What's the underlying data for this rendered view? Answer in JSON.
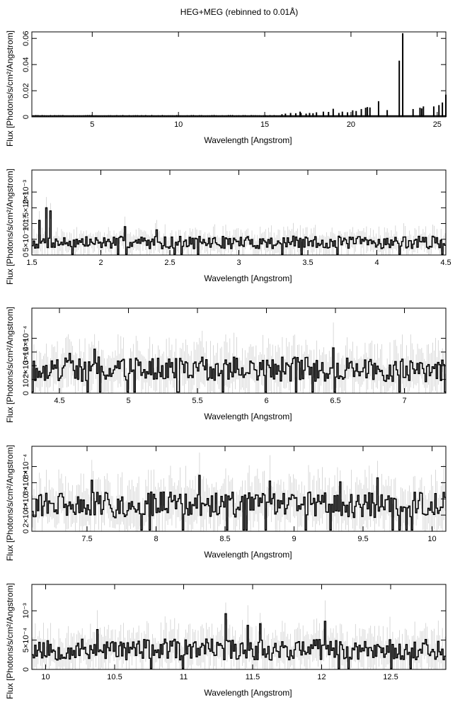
{
  "title": "HEG+MEG (rebinned to 0.01Å)",
  "chart_data": [
    {
      "type": "line",
      "xlabel": "Wavelength [Angstrom]",
      "ylabel": "Flux [Photons/s/cm²/Angstrom]",
      "xlim": [
        1.5,
        25.5
      ],
      "ylim": [
        0,
        0.065
      ],
      "xticks": [
        {
          "v": 5,
          "label": "5"
        },
        {
          "v": 10,
          "label": "10"
        },
        {
          "v": 15,
          "label": "15"
        },
        {
          "v": 20,
          "label": "20"
        },
        {
          "v": 25,
          "label": "25"
        }
      ],
      "yticks": [
        {
          "v": 0,
          "label": "0"
        },
        {
          "v": 0.02,
          "label": "0.02"
        },
        {
          "v": 0.04,
          "label": "0.04"
        },
        {
          "v": 0.06,
          "label": "0.06"
        }
      ],
      "series": [
        {
          "baseline": 0.0008,
          "lines": [
            [
              16.0,
              0.002
            ],
            [
              16.2,
              0.0025
            ],
            [
              16.5,
              0.003
            ],
            [
              16.8,
              0.0028
            ],
            [
              17.05,
              0.004
            ],
            [
              17.1,
              0.003
            ],
            [
              17.4,
              0.0025
            ],
            [
              17.6,
              0.003
            ],
            [
              17.8,
              0.0028
            ],
            [
              18.0,
              0.0035
            ],
            [
              18.4,
              0.004
            ],
            [
              18.7,
              0.0038
            ],
            [
              18.97,
              0.0062
            ],
            [
              19.3,
              0.003
            ],
            [
              19.5,
              0.004
            ],
            [
              19.8,
              0.0035
            ],
            [
              20.1,
              0.005
            ],
            [
              20.3,
              0.0045
            ],
            [
              20.6,
              0.006
            ],
            [
              20.85,
              0.007
            ],
            [
              20.95,
              0.0075
            ],
            [
              21.1,
              0.0072
            ],
            [
              21.6,
              0.012
            ],
            [
              22.1,
              0.0052
            ],
            [
              22.8,
              0.043
            ],
            [
              23.0,
              0.064
            ],
            [
              23.6,
              0.006
            ],
            [
              24.0,
              0.007
            ],
            [
              24.1,
              0.0065
            ],
            [
              24.2,
              0.008
            ],
            [
              24.8,
              0.008
            ],
            [
              25.1,
              0.009
            ],
            [
              25.3,
              0.011
            ],
            [
              25.5,
              0.017
            ]
          ]
        }
      ]
    },
    {
      "type": "line",
      "xlabel": "Wavelength [Angstrom]",
      "ylabel": "Flux [Photons/s/cm²/Angstrom]",
      "xlim": [
        1.5,
        4.5
      ],
      "ylim": [
        0,
        0.0027
      ],
      "xticks": [
        {
          "v": 1.5,
          "label": "1.5"
        },
        {
          "v": 2,
          "label": "2"
        },
        {
          "v": 2.5,
          "label": "2.5"
        },
        {
          "v": 3,
          "label": "3"
        },
        {
          "v": 3.5,
          "label": "3.5"
        },
        {
          "v": 4,
          "label": "4"
        },
        {
          "v": 4.5,
          "label": "4.5"
        }
      ],
      "yticks": [
        {
          "v": 0,
          "label": "0"
        },
        {
          "v": 0.0005,
          "label": "5×10⁻⁴"
        },
        {
          "v": 0.001,
          "label": "10⁻³"
        },
        {
          "v": 0.0015,
          "label": "1.5×10⁻³"
        },
        {
          "v": 0.002,
          "label": "2×10⁻³"
        }
      ],
      "series": [
        {
          "base": 0.00038,
          "amp": 0.0002,
          "peaks": [
            [
              1.55,
              0.0011
            ],
            [
              1.6,
              0.0015
            ],
            [
              1.63,
              0.0014
            ],
            [
              2.17,
              0.0009
            ],
            [
              2.4,
              0.0008
            ]
          ],
          "seed": 7
        }
      ]
    },
    {
      "type": "line",
      "xlabel": "Wavelength [Angstrom]",
      "ylabel": "Flux [Photons/s/cm²/Angstrom]",
      "xlim": [
        4.3,
        7.3
      ],
      "ylim": [
        0,
        0.00062
      ],
      "xticks": [
        {
          "v": 4.5,
          "label": "4.5"
        },
        {
          "v": 5,
          "label": "5"
        },
        {
          "v": 5.5,
          "label": "5.5"
        },
        {
          "v": 6,
          "label": "6"
        },
        {
          "v": 6.5,
          "label": "6.5"
        },
        {
          "v": 7,
          "label": "7"
        }
      ],
      "yticks": [
        {
          "v": 0,
          "label": "0"
        },
        {
          "v": 0.0001,
          "label": "10⁻⁴"
        },
        {
          "v": 0.0002,
          "label": "2×10⁻⁴"
        },
        {
          "v": 0.0003,
          "label": "3×10⁻⁴"
        },
        {
          "v": 0.0004,
          "label": "4×10⁻⁴"
        }
      ],
      "series": [
        {
          "base": 0.000165,
          "amp": 9e-05,
          "peaks": [
            [
              4.57,
              0.00029
            ],
            [
              4.75,
              0.00032
            ],
            [
              5.35,
              0.00036
            ],
            [
              5.68,
              0.00028
            ],
            [
              6.48,
              0.00033
            ]
          ],
          "seed": 19
        }
      ]
    },
    {
      "type": "line",
      "xlabel": "Wavelength [Angstrom]",
      "ylabel": "Flux [Photons/s/cm²/Angstrom]",
      "xlim": [
        7.1,
        10.1
      ],
      "ylim": [
        0,
        0.00105
      ],
      "xticks": [
        {
          "v": 7.5,
          "label": "7.5"
        },
        {
          "v": 8,
          "label": "8"
        },
        {
          "v": 8.5,
          "label": "8.5"
        },
        {
          "v": 9,
          "label": "9"
        },
        {
          "v": 9.5,
          "label": "9.5"
        },
        {
          "v": 10,
          "label": "10"
        }
      ],
      "yticks": [
        {
          "v": 0,
          "label": "0"
        },
        {
          "v": 0.0002,
          "label": "2×10⁻⁴"
        },
        {
          "v": 0.0004,
          "label": "4×10⁻⁴"
        },
        {
          "v": 0.0006,
          "label": "6×10⁻⁴"
        },
        {
          "v": 0.0008,
          "label": "8×10⁻⁴"
        }
      ],
      "series": [
        {
          "base": 0.00031,
          "amp": 0.00016,
          "peaks": [
            [
              7.53,
              0.00063
            ],
            [
              8.31,
              0.00069
            ],
            [
              8.82,
              0.00062
            ],
            [
              9.33,
              0.00061
            ],
            [
              9.6,
              0.00066
            ]
          ],
          "seed": 31
        }
      ]
    },
    {
      "type": "line",
      "xlabel": "Wavelength [Angstrom]",
      "ylabel": "Flux [Photons/s/cm²/Angstrom]",
      "xlim": [
        9.9,
        12.9
      ],
      "ylim": [
        0,
        0.00145
      ],
      "xticks": [
        {
          "v": 10,
          "label": "10"
        },
        {
          "v": 10.5,
          "label": "10.5"
        },
        {
          "v": 11,
          "label": "11"
        },
        {
          "v": 11.5,
          "label": "11.5"
        },
        {
          "v": 12,
          "label": "12"
        },
        {
          "v": 12.5,
          "label": "12.5"
        }
      ],
      "yticks": [
        {
          "v": 0,
          "label": "0"
        },
        {
          "v": 0.0005,
          "label": "5×10⁻⁴"
        },
        {
          "v": 0.001,
          "label": "10⁻³"
        }
      ],
      "series": [
        {
          "base": 0.00032,
          "amp": 0.00018,
          "peaks": [
            [
              11.3,
              0.00095
            ],
            [
              11.55,
              0.00078
            ],
            [
              12.02,
              0.00082
            ],
            [
              11.46,
              0.00075
            ],
            [
              10.37,
              0.00068
            ]
          ],
          "seed": 53
        }
      ]
    }
  ]
}
